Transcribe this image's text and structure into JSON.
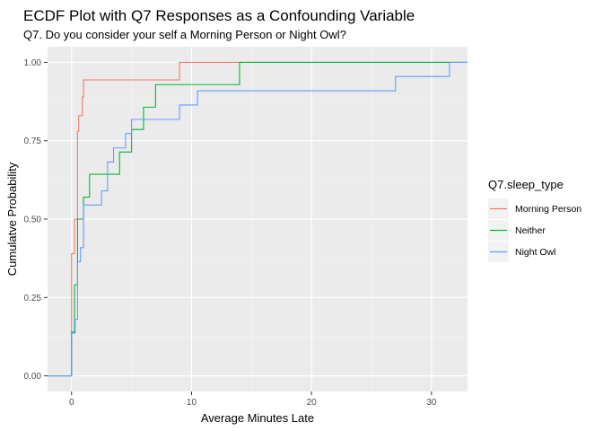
{
  "chart_data": {
    "type": "line",
    "step": true,
    "title": "ECDF Plot with Q7 Responses as a Confounding Variable",
    "subtitle": "Q7. Do you consider your self a Morning Person or Night Owl?",
    "xlabel": "Average Minutes Late",
    "ylabel": "Cumulatve Probability",
    "xlim": [
      -2,
      33
    ],
    "ylim": [
      -0.05,
      1.05
    ],
    "x_ticks": [
      0,
      10,
      20,
      30
    ],
    "x_tick_labels": [
      "0",
      "10",
      "20",
      "30"
    ],
    "y_ticks": [
      0,
      0.25,
      0.5,
      0.75,
      1
    ],
    "y_tick_labels": [
      "0.00",
      "0.25",
      "0.50",
      "0.75",
      "1.00"
    ],
    "grid": true,
    "legend": {
      "title": "Q7.sleep_type",
      "placement": "right"
    },
    "series": [
      {
        "name": "Morning Person",
        "color": "#F8766D",
        "points": [
          [
            0,
            0.39
          ],
          [
            0.25,
            0.5
          ],
          [
            0.5,
            0.78
          ],
          [
            0.6,
            0.83
          ],
          [
            0.9,
            0.89
          ],
          [
            1,
            0.944
          ],
          [
            9,
            1.0
          ]
        ]
      },
      {
        "name": "Neither",
        "color": "#00BA38",
        "points": [
          [
            0,
            0.14
          ],
          [
            0.25,
            0.29
          ],
          [
            0.5,
            0.5
          ],
          [
            1,
            0.57
          ],
          [
            1.5,
            0.643
          ],
          [
            3,
            0.643
          ],
          [
            4,
            0.714
          ],
          [
            5,
            0.786
          ],
          [
            6,
            0.857
          ],
          [
            7,
            0.929
          ],
          [
            14,
            1.0
          ]
        ]
      },
      {
        "name": "Night Owl",
        "color": "#619CFF",
        "points": [
          [
            0,
            0.136
          ],
          [
            0.3,
            0.18
          ],
          [
            0.5,
            0.364
          ],
          [
            0.75,
            0.409
          ],
          [
            1,
            0.545
          ],
          [
            2.5,
            0.59
          ],
          [
            3,
            0.682
          ],
          [
            3.5,
            0.727
          ],
          [
            4.5,
            0.773
          ],
          [
            5,
            0.818
          ],
          [
            9,
            0.864
          ],
          [
            10.5,
            0.909
          ],
          [
            27,
            0.955
          ],
          [
            31.5,
            1.0
          ]
        ]
      }
    ]
  }
}
